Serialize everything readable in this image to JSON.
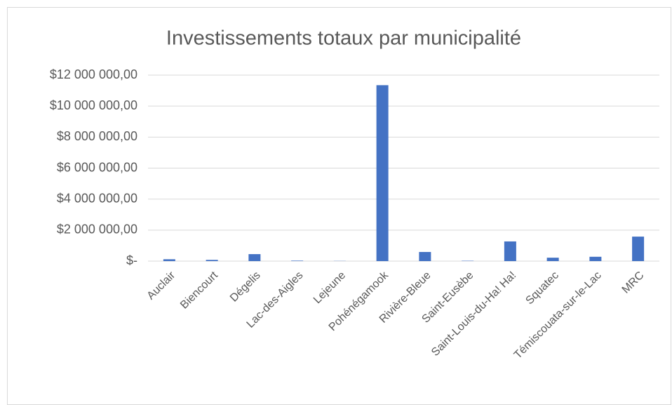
{
  "chart_data": {
    "type": "bar",
    "title": "Investissements totaux par municipalité",
    "categories": [
      "Auclair",
      "Biencourt",
      "Dégelis",
      "Lac-des-Aigles",
      "Lejeune",
      "Pohénégamook",
      "Rivière-Bleue",
      "Saint-Eusèbe",
      "Saint-Louis-du-Ha! Ha!",
      "Squatec",
      "Témiscouata-sur-le-Lac",
      "MRC"
    ],
    "values": [
      120000,
      80000,
      450000,
      30000,
      10000,
      11350000,
      590000,
      20000,
      1270000,
      220000,
      280000,
      1580000
    ],
    "color": "#4472c4",
    "ylim": [
      0,
      12000000
    ],
    "yticks": [
      {
        "value": 0,
        "label": "$-"
      },
      {
        "value": 2000000,
        "label": "$2 000 000,00"
      },
      {
        "value": 4000000,
        "label": "$4 000 000,00"
      },
      {
        "value": 6000000,
        "label": "$6 000 000,00"
      },
      {
        "value": 8000000,
        "label": "$8 000 000,00"
      },
      {
        "value": 10000000,
        "label": "$10 000 000,00"
      },
      {
        "value": 12000000,
        "label": "$12 000 000,00"
      }
    ],
    "grid": true
  }
}
